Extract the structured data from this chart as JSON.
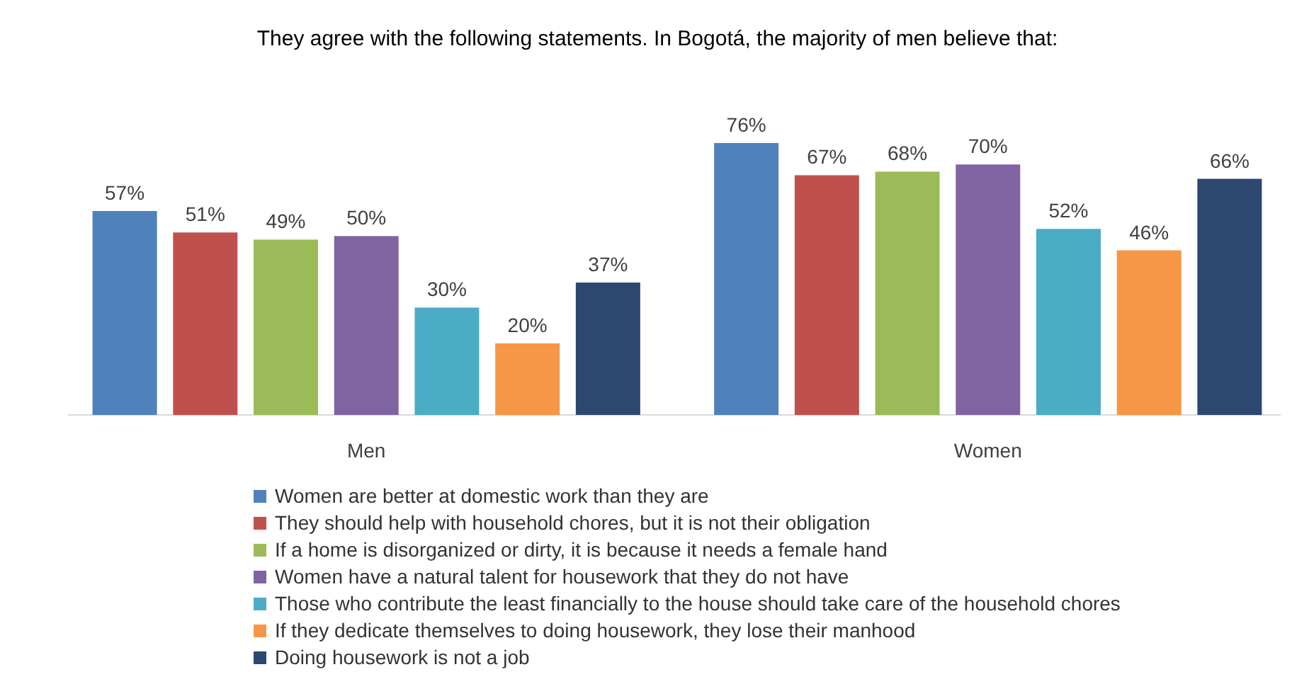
{
  "chart_data": {
    "type": "bar",
    "title": "They agree with the following statements. In Bogotá, the majority of men believe that:",
    "categories": [
      "Men",
      "Women"
    ],
    "legend": "bottom",
    "series": [
      {
        "name": "Women are better at domestic work than they are",
        "color": "#4f81bd",
        "values": [
          57,
          76
        ],
        "value_labels": [
          "57%",
          "76%"
        ]
      },
      {
        "name": "They should help with household chores, but it is not their obligation",
        "color": "#c0504d",
        "values": [
          51,
          67
        ],
        "value_labels": [
          "51%",
          "67%"
        ]
      },
      {
        "name": "If a home is disorganized or dirty, it is because it needs a female hand",
        "color": "#9bbb59",
        "values": [
          49,
          68
        ],
        "value_labels": [
          "49%",
          "68%"
        ]
      },
      {
        "name": "Women have a natural talent for housework that they do not have",
        "color": "#8064a2",
        "values": [
          50,
          70
        ],
        "value_labels": [
          "50%",
          "70%"
        ]
      },
      {
        "name": "Those who contribute the least financially to the house should take care of the household chores",
        "color": "#4bacc6",
        "values": [
          30,
          52
        ],
        "value_labels": [
          "30%",
          "52%"
        ]
      },
      {
        "name": "If they dedicate themselves to doing housework, they lose their manhood",
        "color": "#f79646",
        "values": [
          20,
          46
        ],
        "value_labels": [
          "20%",
          "46%"
        ]
      },
      {
        "name": "Doing housework is not a job",
        "color": "#2c4770",
        "values": [
          37,
          66
        ],
        "value_labels": [
          "37%",
          "66%"
        ]
      }
    ]
  }
}
